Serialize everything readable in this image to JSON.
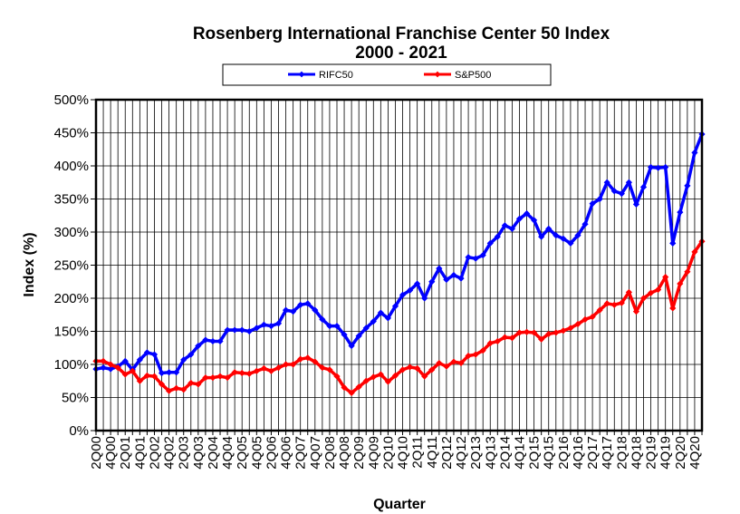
{
  "chart_data": {
    "type": "line",
    "title": "Rosenberg International Franchise Center 50 Index",
    "subtitle": "2000 - 2021",
    "xlabel": "Quarter",
    "ylabel": "Index (%)",
    "ylim": [
      0,
      500
    ],
    "yticks": [
      "0%",
      "50%",
      "100%",
      "150%",
      "200%",
      "250%",
      "300%",
      "350%",
      "400%",
      "450%",
      "500%"
    ],
    "xtick_labels": [
      "2Q00",
      "4Q00",
      "2Q01",
      "4Q01",
      "2Q02",
      "4Q02",
      "2Q03",
      "4Q03",
      "2Q04",
      "4Q04",
      "2Q05",
      "4Q05",
      "2Q06",
      "4Q06",
      "2Q07",
      "4Q07",
      "2Q08",
      "4Q08",
      "2Q09",
      "4Q09",
      "2Q10",
      "4Q10",
      "2Q11",
      "4Q11",
      "2Q12",
      "4Q12",
      "2Q13",
      "4Q13",
      "2Q14",
      "4Q14",
      "2Q15",
      "4Q15",
      "2Q16",
      "4Q16",
      "2Q17",
      "4Q17",
      "2Q18",
      "4Q18",
      "2Q19",
      "4Q19",
      "2Q20",
      "4Q20"
    ],
    "grid": true,
    "legend_position": "top-center",
    "series": [
      {
        "name": "RIFC50",
        "color": "#0000ff",
        "values": [
          93,
          95,
          93,
          97,
          105,
          92,
          107,
          118,
          115,
          87,
          88,
          88,
          107,
          115,
          128,
          137,
          135,
          135,
          152,
          152,
          152,
          150,
          155,
          160,
          158,
          162,
          182,
          180,
          190,
          192,
          182,
          168,
          158,
          158,
          145,
          128,
          143,
          155,
          165,
          178,
          170,
          188,
          205,
          212,
          222,
          200,
          225,
          245,
          228,
          235,
          230,
          262,
          260,
          265,
          283,
          293,
          310,
          305,
          320,
          328,
          318,
          293,
          305,
          295,
          290,
          283,
          295,
          312,
          343,
          350,
          375,
          362,
          358,
          375,
          342,
          368,
          398,
          397,
          398,
          283,
          330,
          370,
          420,
          448
        ]
      },
      {
        "name": "S&P500",
        "color": "#ff0000",
        "values": [
          105,
          105,
          100,
          95,
          85,
          90,
          75,
          83,
          82,
          70,
          60,
          64,
          62,
          72,
          70,
          80,
          80,
          82,
          80,
          88,
          87,
          86,
          90,
          94,
          90,
          95,
          100,
          100,
          108,
          110,
          104,
          95,
          92,
          82,
          65,
          57,
          66,
          75,
          81,
          85,
          74,
          83,
          92,
          96,
          94,
          82,
          92,
          102,
          97,
          104,
          102,
          113,
          115,
          121,
          132,
          135,
          141,
          140,
          148,
          149,
          148,
          138,
          146,
          148,
          151,
          155,
          161,
          168,
          172,
          182,
          192,
          190,
          193,
          209,
          180,
          200,
          208,
          213,
          232,
          185,
          222,
          240,
          270,
          286
        ]
      }
    ]
  }
}
